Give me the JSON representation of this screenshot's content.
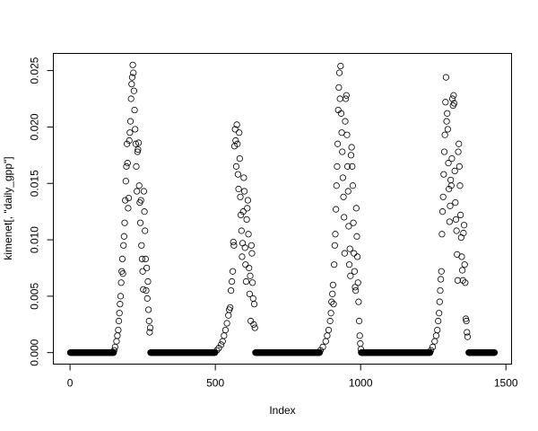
{
  "chart_data": {
    "type": "scatter",
    "title": "",
    "xlabel": "Index",
    "ylabel": "kimenet[, \"daily_gpp\"]",
    "xlim": [
      1,
      1461
    ],
    "ylim": [
      0,
      0.0255
    ],
    "x_ticks": [
      0,
      500,
      1000,
      1500
    ],
    "x_tick_labels": [
      "0",
      "500",
      "1000",
      "1500"
    ],
    "y_ticks": [
      0,
      0.005,
      0.01,
      0.015,
      0.02,
      0.025
    ],
    "y_tick_labels": [
      "0.000",
      "0.005",
      "0.010",
      "0.015",
      "0.020",
      "0.025"
    ],
    "grid": false,
    "marker": "open-circle",
    "marker_color": "#000000",
    "zero_runs": [
      [
        1,
        150
      ],
      [
        277,
        499
      ],
      [
        638,
        859
      ],
      [
        1002,
        1239
      ],
      [
        1372,
        1461
      ]
    ],
    "points": [
      [
        152,
        0.0002
      ],
      [
        155,
        0.0005
      ],
      [
        160,
        0.001
      ],
      [
        163,
        0.0015
      ],
      [
        166,
        0.002
      ],
      [
        168,
        0.0028
      ],
      [
        170,
        0.0035
      ],
      [
        172,
        0.0043
      ],
      [
        174,
        0.005
      ],
      [
        176,
        0.0062
      ],
      [
        178,
        0.0072
      ],
      [
        180,
        0.0083
      ],
      [
        182,
        0.007
      ],
      [
        184,
        0.0095
      ],
      [
        186,
        0.0103
      ],
      [
        188,
        0.0115
      ],
      [
        190,
        0.0135
      ],
      [
        192,
        0.0152
      ],
      [
        194,
        0.0165
      ],
      [
        196,
        0.0185
      ],
      [
        198,
        0.0168
      ],
      [
        200,
        0.0128
      ],
      [
        202,
        0.0137
      ],
      [
        204,
        0.0188
      ],
      [
        206,
        0.0195
      ],
      [
        208,
        0.0205
      ],
      [
        210,
        0.0225
      ],
      [
        212,
        0.0238
      ],
      [
        214,
        0.0244
      ],
      [
        216,
        0.0255
      ],
      [
        218,
        0.0248
      ],
      [
        220,
        0.0232
      ],
      [
        222,
        0.0215
      ],
      [
        224,
        0.0198
      ],
      [
        226,
        0.0185
      ],
      [
        228,
        0.0165
      ],
      [
        230,
        0.0143
      ],
      [
        232,
        0.0178
      ],
      [
        234,
        0.018
      ],
      [
        236,
        0.0186
      ],
      [
        238,
        0.0148
      ],
      [
        240,
        0.0133
      ],
      [
        242,
        0.0115
      ],
      [
        244,
        0.0135
      ],
      [
        246,
        0.0095
      ],
      [
        248,
        0.0083
      ],
      [
        250,
        0.0072
      ],
      [
        252,
        0.0056
      ],
      [
        254,
        0.0143
      ],
      [
        256,
        0.0125
      ],
      [
        258,
        0.0108
      ],
      [
        260,
        0.0083
      ],
      [
        262,
        0.0055
      ],
      [
        264,
        0.0075
      ],
      [
        266,
        0.0048
      ],
      [
        268,
        0.0063
      ],
      [
        270,
        0.0038
      ],
      [
        272,
        0.0028
      ],
      [
        274,
        0.0018
      ],
      [
        276,
        0.0022
      ],
      [
        505,
        0.0002
      ],
      [
        512,
        0.0004
      ],
      [
        520,
        0.0007
      ],
      [
        525,
        0.001
      ],
      [
        530,
        0.0015
      ],
      [
        535,
        0.002
      ],
      [
        540,
        0.0026
      ],
      [
        545,
        0.0033
      ],
      [
        548,
        0.0038
      ],
      [
        551,
        0.004
      ],
      [
        554,
        0.0055
      ],
      [
        557,
        0.0063
      ],
      [
        560,
        0.0072
      ],
      [
        562,
        0.0098
      ],
      [
        564,
        0.0095
      ],
      [
        566,
        0.0183
      ],
      [
        568,
        0.0198
      ],
      [
        570,
        0.0188
      ],
      [
        572,
        0.0165
      ],
      [
        574,
        0.0202
      ],
      [
        576,
        0.0185
      ],
      [
        578,
        0.0158
      ],
      [
        580,
        0.0145
      ],
      [
        582,
        0.0195
      ],
      [
        584,
        0.0172
      ],
      [
        586,
        0.0138
      ],
      [
        588,
        0.0122
      ],
      [
        590,
        0.0108
      ],
      [
        592,
        0.0085
      ],
      [
        594,
        0.0097
      ],
      [
        596,
        0.0125
      ],
      [
        598,
        0.0155
      ],
      [
        600,
        0.0143
      ],
      [
        602,
        0.0093
      ],
      [
        604,
        0.0078
      ],
      [
        606,
        0.0063
      ],
      [
        608,
        0.0118
      ],
      [
        610,
        0.0128
      ],
      [
        612,
        0.0135
      ],
      [
        614,
        0.0105
      ],
      [
        616,
        0.0075
      ],
      [
        618,
        0.0052
      ],
      [
        620,
        0.0068
      ],
      [
        622,
        0.0028
      ],
      [
        624,
        0.0095
      ],
      [
        626,
        0.0088
      ],
      [
        628,
        0.0062
      ],
      [
        630,
        0.0048
      ],
      [
        632,
        0.0025
      ],
      [
        634,
        0.0043
      ],
      [
        636,
        0.0022
      ],
      [
        862,
        0.0002
      ],
      [
        870,
        0.0005
      ],
      [
        880,
        0.001
      ],
      [
        885,
        0.0015
      ],
      [
        890,
        0.002
      ],
      [
        895,
        0.0028
      ],
      [
        898,
        0.0035
      ],
      [
        900,
        0.0045
      ],
      [
        903,
        0.0052
      ],
      [
        905,
        0.006
      ],
      [
        907,
        0.0043
      ],
      [
        909,
        0.0078
      ],
      [
        911,
        0.0095
      ],
      [
        913,
        0.0105
      ],
      [
        915,
        0.0127
      ],
      [
        917,
        0.0148
      ],
      [
        919,
        0.0165
      ],
      [
        921,
        0.0185
      ],
      [
        923,
        0.0215
      ],
      [
        925,
        0.0235
      ],
      [
        927,
        0.0248
      ],
      [
        929,
        0.0225
      ],
      [
        931,
        0.0254
      ],
      [
        933,
        0.0212
      ],
      [
        935,
        0.0195
      ],
      [
        937,
        0.0178
      ],
      [
        939,
        0.0155
      ],
      [
        941,
        0.0138
      ],
      [
        943,
        0.012
      ],
      [
        945,
        0.0088
      ],
      [
        947,
        0.0205
      ],
      [
        949,
        0.0225
      ],
      [
        951,
        0.0228
      ],
      [
        953,
        0.0193
      ],
      [
        955,
        0.0165
      ],
      [
        957,
        0.0143
      ],
      [
        959,
        0.0112
      ],
      [
        961,
        0.0078
      ],
      [
        963,
        0.0092
      ],
      [
        965,
        0.0068
      ],
      [
        967,
        0.0175
      ],
      [
        969,
        0.0182
      ],
      [
        971,
        0.0165
      ],
      [
        973,
        0.0148
      ],
      [
        975,
        0.0115
      ],
      [
        977,
        0.0088
      ],
      [
        979,
        0.0072
      ],
      [
        981,
        0.0058
      ],
      [
        983,
        0.0055
      ],
      [
        985,
        0.0128
      ],
      [
        987,
        0.0103
      ],
      [
        989,
        0.0085
      ],
      [
        991,
        0.0062
      ],
      [
        993,
        0.0045
      ],
      [
        995,
        0.0028
      ],
      [
        997,
        0.0015
      ],
      [
        999,
        0.0008
      ],
      [
        1001,
        0.0003
      ],
      [
        1242,
        0.0002
      ],
      [
        1248,
        0.0005
      ],
      [
        1255,
        0.001
      ],
      [
        1260,
        0.0015
      ],
      [
        1264,
        0.002
      ],
      [
        1267,
        0.0028
      ],
      [
        1270,
        0.0035
      ],
      [
        1272,
        0.0045
      ],
      [
        1274,
        0.0055
      ],
      [
        1276,
        0.0065
      ],
      [
        1278,
        0.0072
      ],
      [
        1280,
        0.0105
      ],
      [
        1282,
        0.0125
      ],
      [
        1284,
        0.0138
      ],
      [
        1286,
        0.0158
      ],
      [
        1288,
        0.0178
      ],
      [
        1290,
        0.0193
      ],
      [
        1292,
        0.0222
      ],
      [
        1294,
        0.0244
      ],
      [
        1296,
        0.0205
      ],
      [
        1298,
        0.0212
      ],
      [
        1300,
        0.0198
      ],
      [
        1302,
        0.0168
      ],
      [
        1304,
        0.0145
      ],
      [
        1306,
        0.0116
      ],
      [
        1308,
        0.013
      ],
      [
        1310,
        0.0153
      ],
      [
        1312,
        0.0148
      ],
      [
        1314,
        0.0172
      ],
      [
        1316,
        0.0225
      ],
      [
        1318,
        0.0219
      ],
      [
        1320,
        0.0228
      ],
      [
        1322,
        0.0221
      ],
      [
        1324,
        0.0161
      ],
      [
        1326,
        0.0133
      ],
      [
        1328,
        0.0118
      ],
      [
        1330,
        0.0108
      ],
      [
        1332,
        0.0087
      ],
      [
        1334,
        0.0064
      ],
      [
        1336,
        0.0178
      ],
      [
        1338,
        0.0185
      ],
      [
        1340,
        0.0165
      ],
      [
        1342,
        0.0148
      ],
      [
        1344,
        0.0122
      ],
      [
        1346,
        0.0102
      ],
      [
        1348,
        0.0085
      ],
      [
        1350,
        0.0073
      ],
      [
        1352,
        0.0064
      ],
      [
        1354,
        0.0106
      ],
      [
        1356,
        0.0113
      ],
      [
        1358,
        0.0078
      ],
      [
        1360,
        0.0062
      ],
      [
        1362,
        0.003
      ],
      [
        1364,
        0.0028
      ],
      [
        1366,
        0.0018
      ],
      [
        1368,
        0.0014
      ]
    ]
  }
}
